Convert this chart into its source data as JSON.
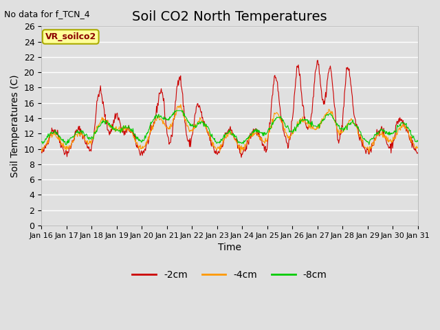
{
  "title": "Soil CO2 North Temperatures",
  "no_data_text": "No data for f_TCN_4",
  "ylabel": "Soil Temperatures (C)",
  "xlabel": "Time",
  "legend_label": "VR_soilco2",
  "ylim": [
    0,
    26
  ],
  "yticks": [
    0,
    2,
    4,
    6,
    8,
    10,
    12,
    14,
    16,
    18,
    20,
    22,
    24,
    26
  ],
  "xtick_labels": [
    "Jan 16",
    "Jan 17",
    "Jan 18",
    "Jan 19",
    "Jan 20",
    "Jan 21",
    "Jan 22",
    "Jan 23",
    "Jan 24",
    "Jan 25",
    "Jan 26",
    "Jan 27",
    "Jan 28",
    "Jan 29",
    "Jan 30",
    "Jan 31"
  ],
  "line_colors": {
    "2cm": "#cc0000",
    "4cm": "#ff9900",
    "8cm": "#00cc00"
  },
  "legend_entries": [
    "-2cm",
    "-4cm",
    "-8cm"
  ],
  "background_color": "#e0e0e0",
  "grid_color": "#ffffff",
  "title_fontsize": 14,
  "label_fontsize": 10,
  "tick_fontsize": 9
}
